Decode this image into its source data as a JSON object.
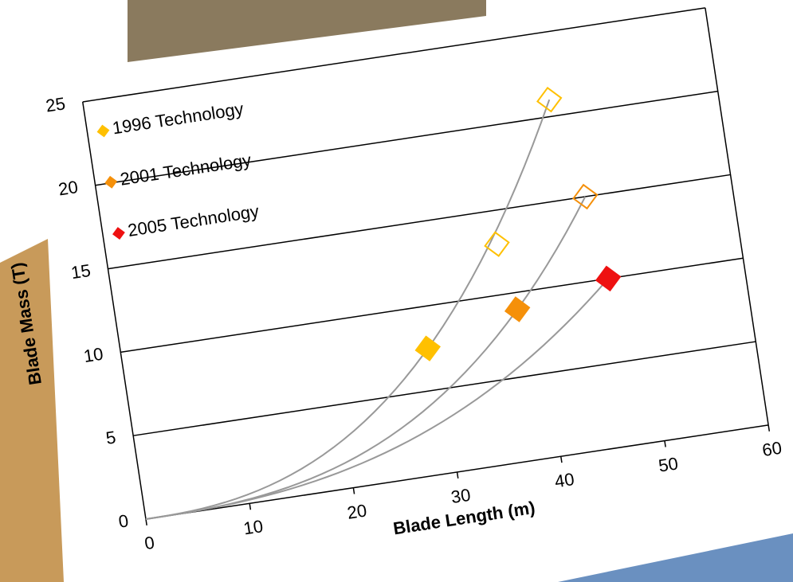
{
  "chart_data": {
    "type": "scatter",
    "x_label": "Blade Length (m)",
    "y_label": "Blade Mass (T)",
    "xlim": [
      0,
      60
    ],
    "xticks": [
      0,
      10,
      20,
      30,
      40,
      50,
      60
    ],
    "ylim": [
      0,
      25
    ],
    "yticks": [
      0,
      5,
      10,
      15,
      20,
      25
    ],
    "grid": true,
    "series": [
      {
        "name": "1996 Technology",
        "color": "#ffc000",
        "x": [
          29,
          37,
          44
        ],
        "values": [
          7.5,
          13,
          21
        ],
        "filled": [
          true,
          false,
          false
        ]
      },
      {
        "name": "2001 Technology",
        "color": "#f5900a",
        "x": [
          38,
          46
        ],
        "values": [
          9,
          15
        ],
        "filled": [
          true,
          false
        ]
      },
      {
        "name": "2005 Technology",
        "color": "#ee1111",
        "x": [
          47
        ],
        "values": [
          10
        ],
        "filled": [
          true
        ]
      }
    ]
  }
}
